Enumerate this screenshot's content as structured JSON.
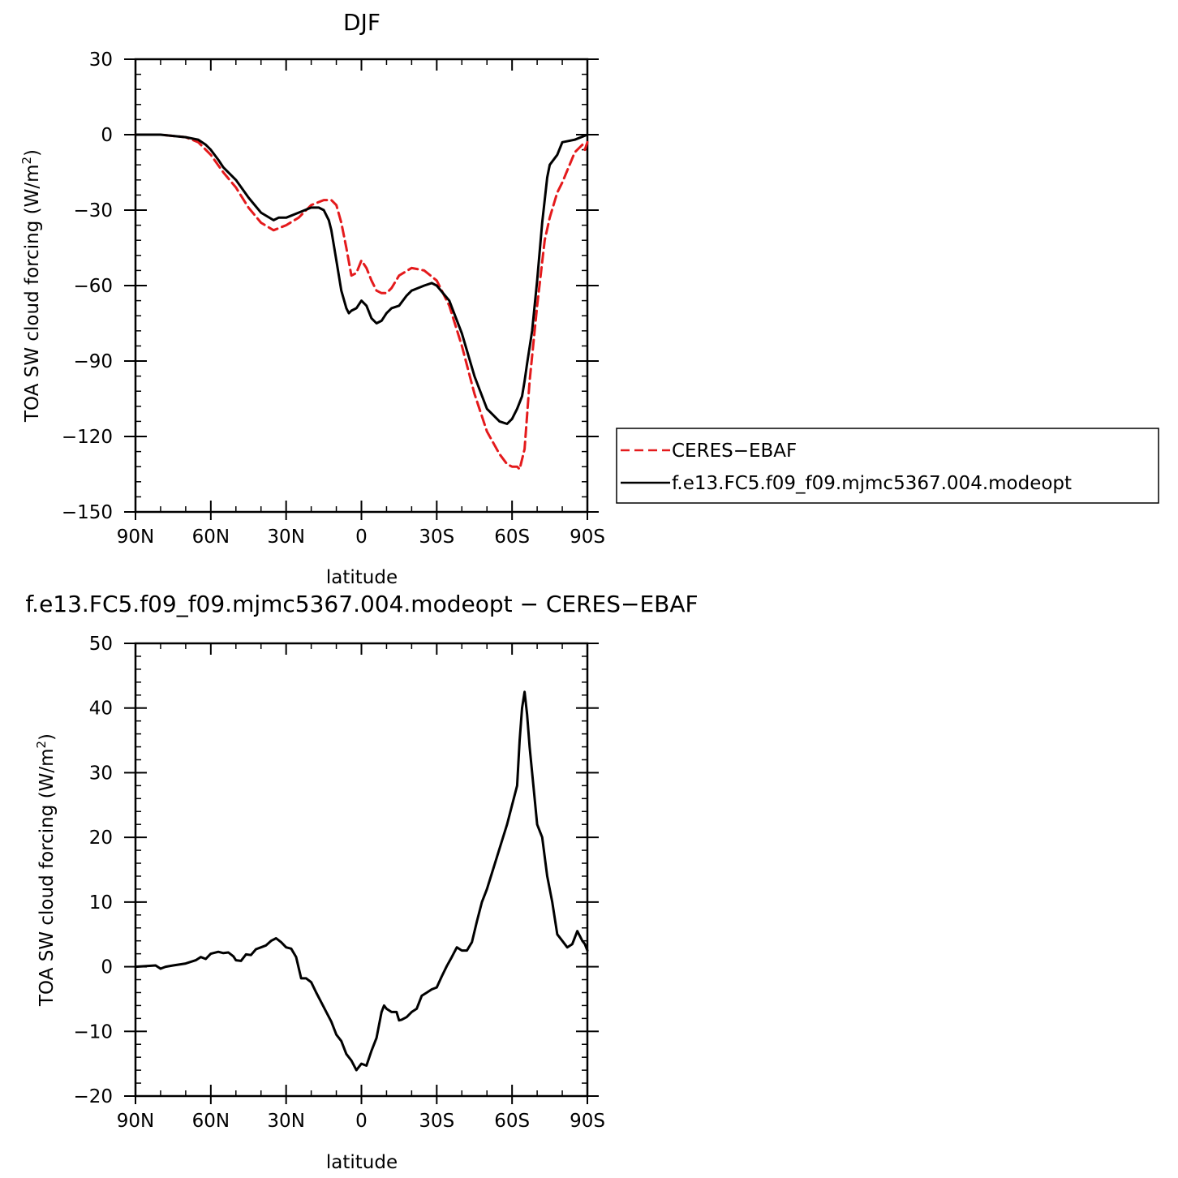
{
  "chart_data": [
    {
      "type": "line",
      "title": "DJF",
      "xlabel": "latitude",
      "ylabel": "TOA SW cloud forcing (W/m",
      "ylabel_sup": "2",
      "ylabel_close": ")",
      "xlim": [
        -90,
        90
      ],
      "ylim": [
        -150,
        30
      ],
      "x_ticks": [
        -90,
        -60,
        -30,
        0,
        30,
        60,
        90
      ],
      "x_tick_labels": [
        "90N",
        "60N",
        "30N",
        "0",
        "30S",
        "60S",
        "90S"
      ],
      "y_ticks": [
        -150,
        -120,
        -90,
        -60,
        -30,
        0,
        30
      ],
      "y_tick_labels": [
        "−150",
        "−120",
        "−90",
        "−60",
        "−30",
        "0",
        "30"
      ],
      "grid": false,
      "legend": {
        "placement": "right",
        "entries": [
          "CERES−EBAF",
          "f.e13.FC5.f09_f09.mjmc5367.004.modeopt"
        ]
      },
      "series": [
        {
          "name": "CERES−EBAF",
          "color": "#e41a1c",
          "dash": true,
          "x": [
            -90,
            -80,
            -70,
            -65,
            -60,
            -55,
            -50,
            -45,
            -40,
            -35,
            -30,
            -25,
            -20,
            -15,
            -12,
            -10,
            -8,
            -6,
            -4,
            -2,
            0,
            2,
            4,
            6,
            8,
            10,
            12,
            15,
            20,
            25,
            30,
            35,
            40,
            45,
            50,
            55,
            58,
            60,
            62,
            63,
            65,
            67,
            70,
            73,
            75,
            78,
            80,
            85,
            87,
            88,
            89,
            90
          ],
          "y": [
            0,
            0,
            -1,
            -3,
            -8,
            -15,
            -21,
            -29,
            -35,
            -38,
            -36,
            -33,
            -28,
            -26,
            -26,
            -28,
            -35,
            -45,
            -56,
            -55,
            -50,
            -53,
            -58,
            -62,
            -63,
            -63,
            -61,
            -56,
            -53,
            -54,
            -58,
            -68,
            -84,
            -103,
            -118,
            -127,
            -131,
            -132,
            -132,
            -133,
            -125,
            -98,
            -68,
            -42,
            -33,
            -23,
            -19,
            -7,
            -5,
            -4,
            -6,
            -3
          ]
        },
        {
          "name": "f.e13.FC5.f09_f09.mjmc5367.004.modeopt",
          "color": "#000000",
          "dash": false,
          "x": [
            -90,
            -80,
            -70,
            -65,
            -62,
            -60,
            -57,
            -55,
            -50,
            -45,
            -40,
            -35,
            -33,
            -30,
            -25,
            -20,
            -17,
            -15,
            -13,
            -12,
            -10,
            -8,
            -6,
            -5,
            -4,
            -2,
            0,
            2,
            4,
            6,
            8,
            10,
            12,
            15,
            18,
            20,
            25,
            28,
            30,
            35,
            40,
            45,
            50,
            55,
            58,
            60,
            62,
            64,
            65,
            66,
            68,
            70,
            72,
            74,
            75,
            78,
            80,
            85,
            90
          ],
          "y": [
            0,
            0,
            -1,
            -2,
            -4,
            -6,
            -10,
            -13,
            -18,
            -25,
            -31,
            -34,
            -33,
            -33,
            -31,
            -29,
            -29,
            -30,
            -34,
            -38,
            -50,
            -62,
            -69,
            -71,
            -70,
            -69,
            -66,
            -68,
            -73,
            -75,
            -74,
            -71,
            -69,
            -68,
            -64,
            -62,
            -60,
            -59,
            -60,
            -66,
            -79,
            -96,
            -109,
            -114,
            -115,
            -113,
            -109,
            -104,
            -98,
            -91,
            -78,
            -58,
            -35,
            -17,
            -12,
            -8,
            -3,
            -2,
            0
          ]
        }
      ]
    },
    {
      "type": "line",
      "title": "f.e13.FC5.f09_f09.mjmc5367.004.modeopt − CERES−EBAF",
      "xlabel": "latitude",
      "ylabel": "TOA SW cloud forcing (W/m",
      "ylabel_sup": "2",
      "ylabel_close": ")",
      "xlim": [
        -90,
        90
      ],
      "ylim": [
        -20,
        50
      ],
      "x_ticks": [
        -90,
        -60,
        -30,
        0,
        30,
        60,
        90
      ],
      "x_tick_labels": [
        "90N",
        "60N",
        "30N",
        "0",
        "30S",
        "60S",
        "90S"
      ],
      "y_ticks": [
        -20,
        -10,
        0,
        10,
        20,
        30,
        40,
        50
      ],
      "y_tick_labels": [
        "−20",
        "−10",
        "0",
        "10",
        "20",
        "30",
        "40",
        "50"
      ],
      "grid": false,
      "series": [
        {
          "color": "#000000",
          "dash": false,
          "x": [
            -90,
            -82,
            -80,
            -78,
            -75,
            -70,
            -66,
            -64,
            -62,
            -60,
            -57,
            -55,
            -53,
            -51,
            -50,
            -48,
            -46,
            -44,
            -42,
            -40,
            -38,
            -36,
            -34,
            -32,
            -30,
            -28,
            -26,
            -24,
            -22,
            -20,
            -18,
            -16,
            -14,
            -12,
            -10,
            -8,
            -6,
            -4,
            -2,
            0,
            2,
            4,
            6,
            7,
            8,
            9,
            10,
            12,
            14,
            15,
            16,
            18,
            20,
            22,
            24,
            26,
            28,
            30,
            32,
            34,
            36,
            38,
            40,
            42,
            44,
            46,
            48,
            50,
            52,
            54,
            56,
            58,
            60,
            62,
            63,
            64,
            65,
            66,
            67,
            68,
            70,
            72,
            74,
            76,
            78,
            80,
            82,
            84,
            86,
            88,
            89,
            90
          ],
          "y": [
            0,
            0.2,
            -0.3,
            0,
            0.2,
            0.5,
            1,
            1.5,
            1.2,
            2,
            2.3,
            2.1,
            2.2,
            1.6,
            1,
            0.9,
            1.9,
            1.8,
            2.7,
            3,
            3.3,
            4,
            4.4,
            3.8,
            3,
            2.8,
            1.5,
            -1.8,
            -1.8,
            -2.4,
            -4,
            -5.5,
            -7,
            -8.5,
            -10.5,
            -11.5,
            -13.5,
            -14.5,
            -16,
            -15,
            -15.3,
            -13,
            -11,
            -9,
            -7,
            -6,
            -6.5,
            -7,
            -7,
            -8.3,
            -8.2,
            -7.8,
            -7,
            -6.5,
            -4.5,
            -4,
            -3.5,
            -3.2,
            -1.5,
            0.1,
            1.5,
            3,
            2.5,
            2.5,
            3.8,
            7,
            10,
            12,
            14.5,
            17,
            19.5,
            22,
            25,
            28,
            35,
            40,
            42.5,
            39,
            34,
            30,
            22,
            20,
            14,
            10,
            5,
            4,
            3,
            3.5,
            5.5,
            4,
            3.5,
            2.5
          ]
        }
      ]
    }
  ]
}
